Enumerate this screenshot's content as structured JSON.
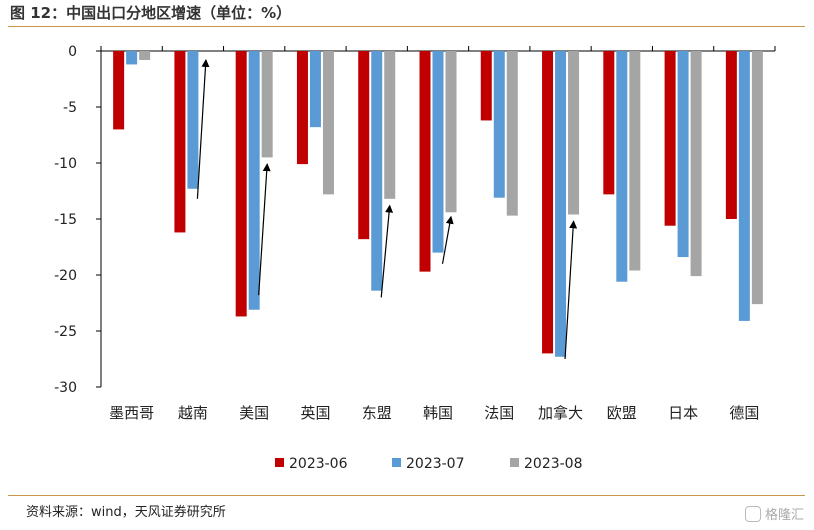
{
  "title": "图 12：中国出口分地区增速（单位：%）",
  "source": "资料来源：wind，天风证券研究所",
  "watermark": "格隆汇",
  "chart_data": {
    "type": "bar",
    "categories": [
      "墨西哥",
      "越南",
      "美国",
      "英国",
      "东盟",
      "韩国",
      "法国",
      "加拿大",
      "欧盟",
      "日本",
      "德国"
    ],
    "series": [
      {
        "name": "2023-06",
        "color": "#c00000",
        "values": [
          -7.0,
          -16.2,
          -23.7,
          -10.1,
          -16.8,
          -19.7,
          -6.2,
          -27.0,
          -12.8,
          -15.6,
          -15.0
        ]
      },
      {
        "name": "2023-07",
        "color": "#5b9bd5",
        "values": [
          -1.2,
          -12.3,
          -23.1,
          -6.8,
          -21.4,
          -18.0,
          -13.1,
          -27.3,
          -20.6,
          -18.4,
          -24.1
        ]
      },
      {
        "name": "2023-08",
        "color": "#a5a5a5",
        "values": [
          -0.8,
          0,
          -9.5,
          -12.8,
          -13.2,
          -14.4,
          -14.7,
          -14.6,
          -19.6,
          -20.1,
          -22.6
        ]
      }
    ],
    "ylim": [
      -30,
      0
    ],
    "yticks": [
      0,
      -5,
      -10,
      -15,
      -20,
      -25,
      -30
    ],
    "xlabel": "",
    "ylabel": "",
    "legend": "bottom",
    "grid": false,
    "annotations": [
      {
        "category": "越南",
        "type": "arrow",
        "from": -13.2,
        "to": -0.8
      },
      {
        "category": "美国",
        "type": "arrow",
        "from": -21.8,
        "to": -10.1
      },
      {
        "category": "东盟",
        "type": "arrow",
        "from": -22.0,
        "to": -13.8
      },
      {
        "category": "韩国",
        "type": "arrow",
        "from": -19.0,
        "to": -14.8
      },
      {
        "category": "加拿大",
        "type": "arrow",
        "from": -27.5,
        "to": -15.2
      }
    ]
  }
}
